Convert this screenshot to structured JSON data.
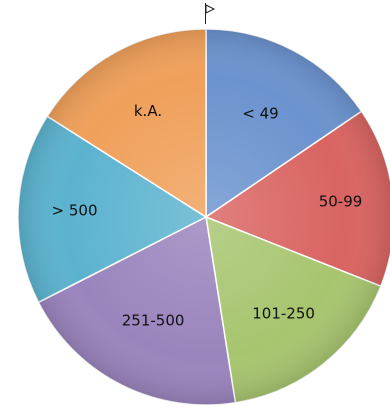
{
  "chart_data": {
    "type": "pie",
    "categories": [
      "< 49",
      "50-99",
      "101-250",
      "251-500",
      "> 500",
      "k.A."
    ],
    "values": [
      15.5,
      15.5,
      16.5,
      20,
      16.5,
      16
    ],
    "colors": [
      "#6b93cf",
      "#d96462",
      "#a7c56f",
      "#9a84bd",
      "#5cb3cf",
      "#f0a05a"
    ],
    "start_position": "top",
    "direction": "clockwise",
    "legend": "none",
    "title": ""
  }
}
